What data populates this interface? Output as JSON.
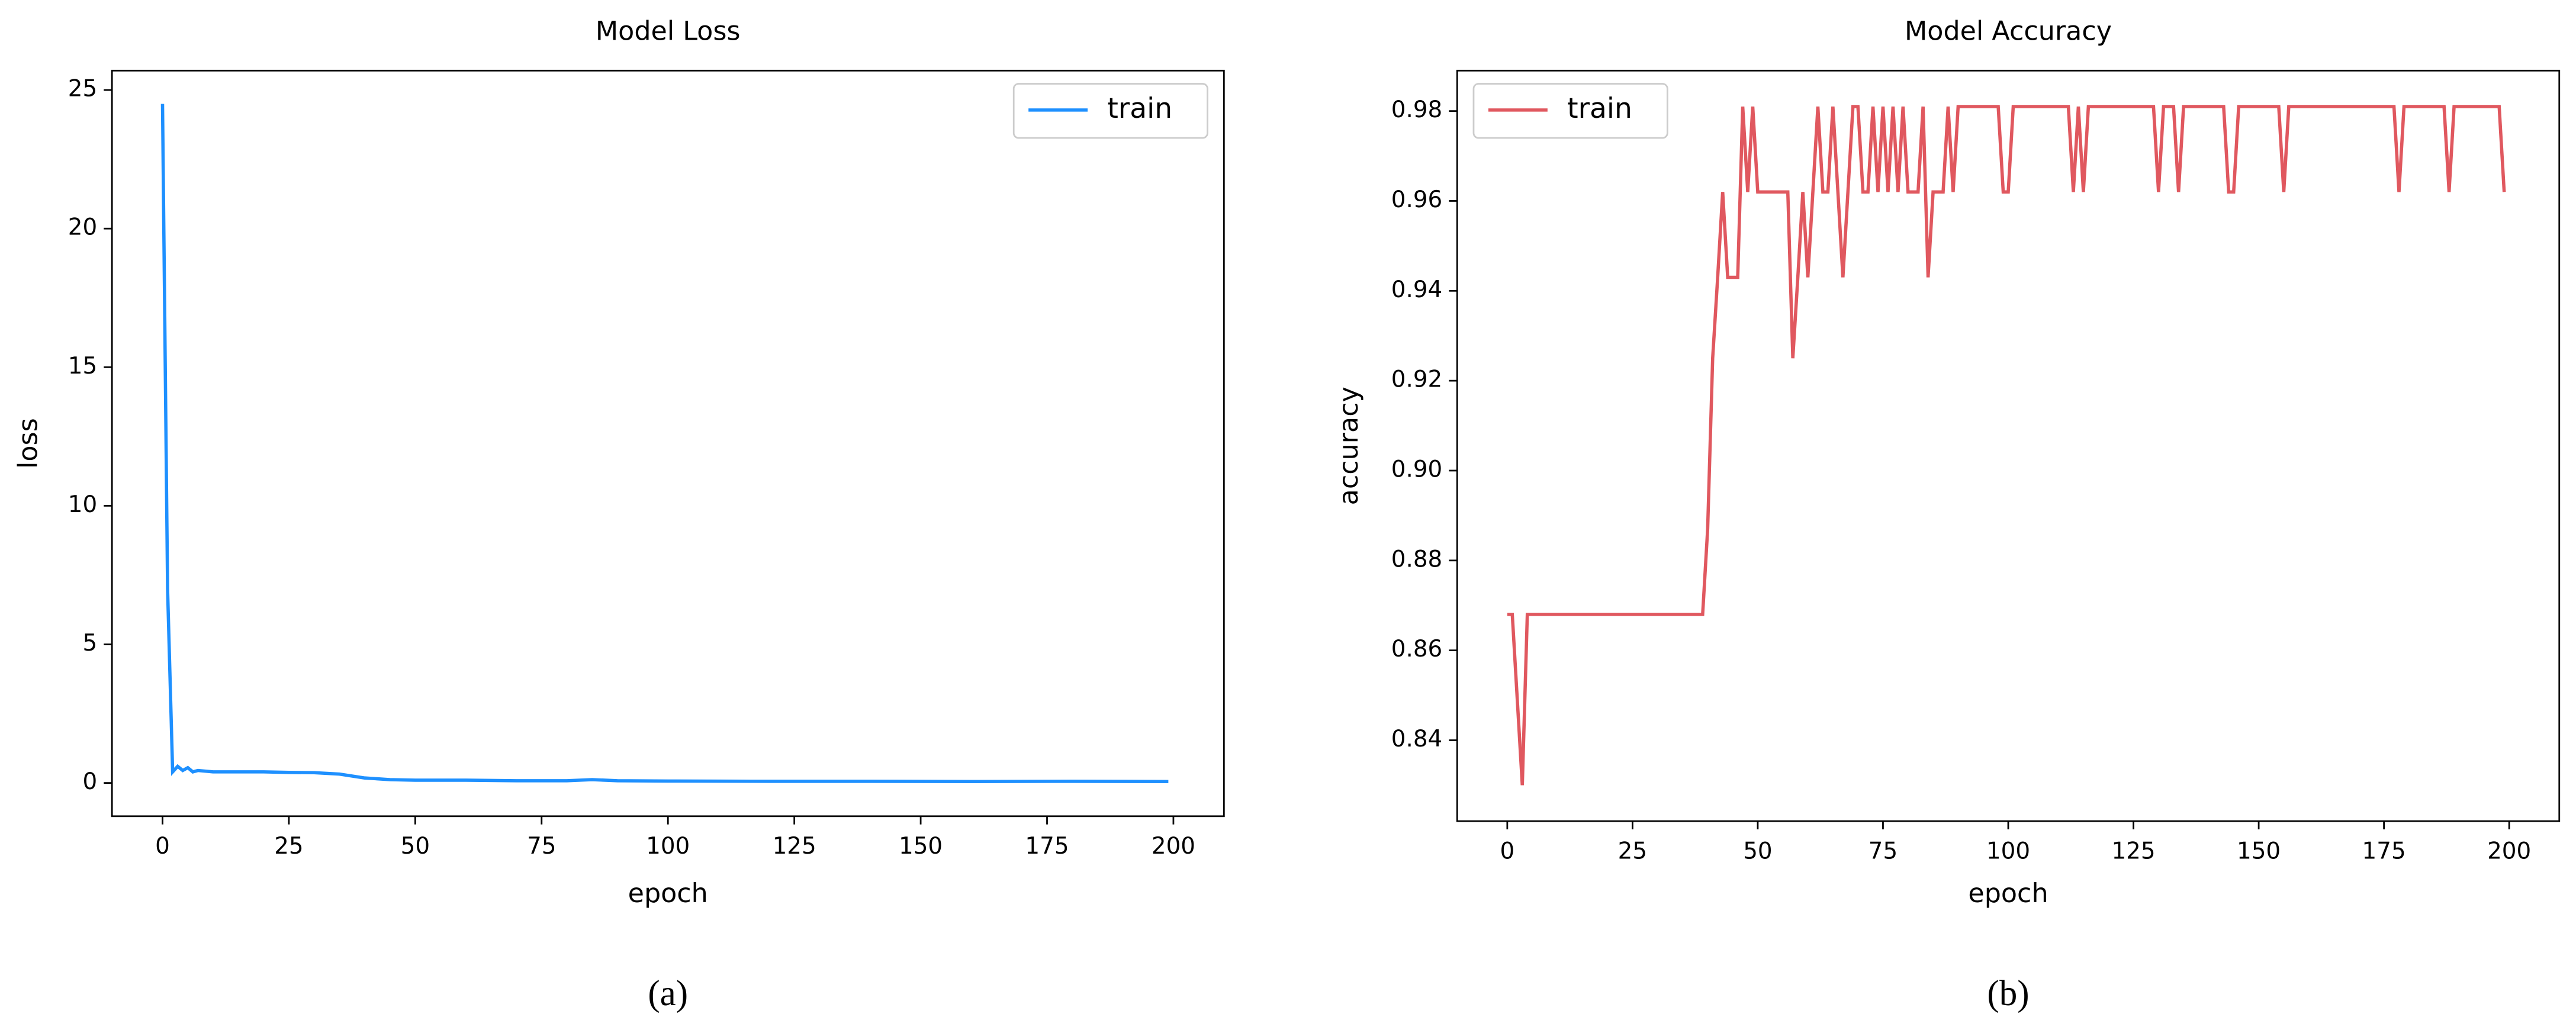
{
  "chart_data": [
    {
      "type": "line",
      "title": "Model Loss",
      "xlabel": "epoch",
      "ylabel": "loss",
      "caption": "(a)",
      "x": [
        0,
        1,
        2,
        3,
        4,
        5,
        6,
        7,
        10,
        20,
        25,
        30,
        35,
        40,
        45,
        50,
        60,
        70,
        80,
        85,
        90,
        100,
        120,
        140,
        160,
        180,
        199
      ],
      "series": [
        {
          "name": "train",
          "color": "#1e90ff",
          "values": [
            24.5,
            7.0,
            0.4,
            0.6,
            0.45,
            0.55,
            0.4,
            0.45,
            0.4,
            0.4,
            0.38,
            0.37,
            0.32,
            0.18,
            0.12,
            0.1,
            0.1,
            0.08,
            0.08,
            0.12,
            0.08,
            0.07,
            0.06,
            0.06,
            0.05,
            0.06,
            0.05
          ]
        }
      ],
      "xlim": [
        -10,
        210
      ],
      "ylim": [
        -1.2,
        25.7
      ],
      "xticks": [
        0,
        25,
        50,
        75,
        100,
        125,
        150,
        175,
        200
      ],
      "yticks": [
        0,
        5,
        10,
        15,
        20,
        25
      ],
      "grid": false,
      "legend": "upper right"
    },
    {
      "type": "line",
      "title": "Model Accuracy",
      "xlabel": "epoch",
      "ylabel": "accuracy",
      "caption": "(b)",
      "x": [
        0,
        1,
        3,
        4,
        39,
        40,
        41,
        42,
        43,
        44,
        46,
        47,
        48,
        49,
        50,
        56,
        57,
        58,
        59,
        60,
        62,
        63,
        64,
        65,
        66,
        67,
        68,
        69,
        70,
        71,
        72,
        73,
        74,
        75,
        76,
        77,
        78,
        79,
        80,
        82,
        83,
        84,
        85,
        87,
        88,
        89,
        90,
        98,
        99,
        100,
        101,
        112,
        113,
        114,
        115,
        116,
        129,
        130,
        131,
        133,
        134,
        135,
        143,
        144,
        145,
        146,
        154,
        155,
        156,
        177,
        178,
        179,
        187,
        188,
        189,
        198,
        199
      ],
      "series": [
        {
          "name": "train",
          "color": "#e0585f",
          "values": [
            0.868,
            0.868,
            0.83,
            0.868,
            0.868,
            0.887,
            0.925,
            0.943,
            0.962,
            0.943,
            0.943,
            0.981,
            0.962,
            0.981,
            0.962,
            0.962,
            0.925,
            0.943,
            0.962,
            0.943,
            0.981,
            0.962,
            0.962,
            0.981,
            0.962,
            0.943,
            0.962,
            0.981,
            0.981,
            0.962,
            0.962,
            0.981,
            0.962,
            0.981,
            0.962,
            0.981,
            0.962,
            0.981,
            0.962,
            0.962,
            0.981,
            0.943,
            0.962,
            0.962,
            0.981,
            0.962,
            0.981,
            0.981,
            0.962,
            0.962,
            0.981,
            0.981,
            0.962,
            0.981,
            0.962,
            0.981,
            0.981,
            0.962,
            0.981,
            0.981,
            0.962,
            0.981,
            0.981,
            0.962,
            0.962,
            0.981,
            0.981,
            0.962,
            0.981,
            0.981,
            0.962,
            0.981,
            0.981,
            0.962,
            0.981,
            0.981,
            0.962
          ]
        }
      ],
      "xlim": [
        -10,
        210
      ],
      "ylim": [
        0.822,
        0.989
      ],
      "xticks": [
        0,
        25,
        50,
        75,
        100,
        125,
        150,
        175,
        200
      ],
      "yticks": [
        0.84,
        0.86,
        0.88,
        {
          "value": 0.9,
          "label": "0.90"
        },
        0.92,
        0.94,
        0.96,
        0.98
      ],
      "grid": false,
      "legend": "upper left"
    }
  ]
}
